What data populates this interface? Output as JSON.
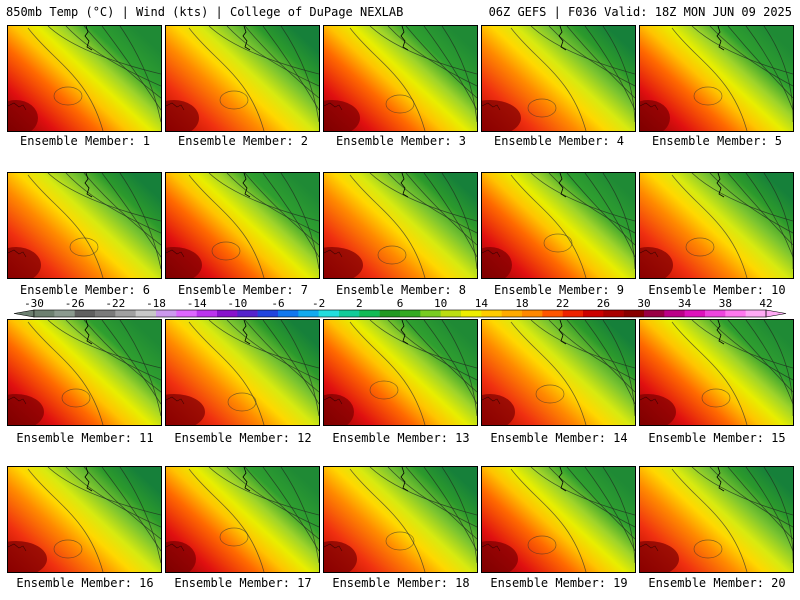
{
  "header": {
    "left": "850mb Temp (°C) | Wind (kts) | College of DuPage NEXLAB",
    "right": "06Z GEFS | F036 Valid: 18Z MON JUN 09 2025"
  },
  "members": [
    {
      "label": "Ensemble Member: 1"
    },
    {
      "label": "Ensemble Member: 2"
    },
    {
      "label": "Ensemble Member: 3"
    },
    {
      "label": "Ensemble Member: 4"
    },
    {
      "label": "Ensemble Member: 5"
    },
    {
      "label": "Ensemble Member: 6"
    },
    {
      "label": "Ensemble Member: 7"
    },
    {
      "label": "Ensemble Member: 8"
    },
    {
      "label": "Ensemble Member: 9"
    },
    {
      "label": "Ensemble Member: 10"
    },
    {
      "label": "Ensemble Member: 11"
    },
    {
      "label": "Ensemble Member: 12"
    },
    {
      "label": "Ensemble Member: 13"
    },
    {
      "label": "Ensemble Member: 14"
    },
    {
      "label": "Ensemble Member: 15"
    },
    {
      "label": "Ensemble Member: 16"
    },
    {
      "label": "Ensemble Member: 17"
    },
    {
      "label": "Ensemble Member: 18"
    },
    {
      "label": "Ensemble Member: 19"
    },
    {
      "label": "Ensemble Member: 20"
    }
  ],
  "colorbar": {
    "ticks": [
      "-30",
      "-26",
      "-22",
      "-18",
      "-14",
      "-10",
      "-6",
      "-2",
      "2",
      "6",
      "10",
      "14",
      "18",
      "22",
      "26",
      "30",
      "34",
      "38",
      "42"
    ],
    "colors": [
      "#6d8070",
      "#8b9a8f",
      "#606060",
      "#7a7a7a",
      "#a0a0a0",
      "#c8c8c8",
      "#cc99ee",
      "#dd66ff",
      "#bb33ee",
      "#8811cc",
      "#5522cc",
      "#2244dd",
      "#1177ee",
      "#11aaee",
      "#22dddd",
      "#11cc99",
      "#11bb55",
      "#229922",
      "#33aa22",
      "#77cc22",
      "#bbdd11",
      "#eeee00",
      "#ffcc00",
      "#ffaa00",
      "#ff8800",
      "#ff5500",
      "#ee2200",
      "#cc0000",
      "#aa0000",
      "#880000",
      "#990044",
      "#bb0088",
      "#dd11bb",
      "#ee44dd",
      "#ff77ee",
      "#ffaaf5"
    ]
  }
}
